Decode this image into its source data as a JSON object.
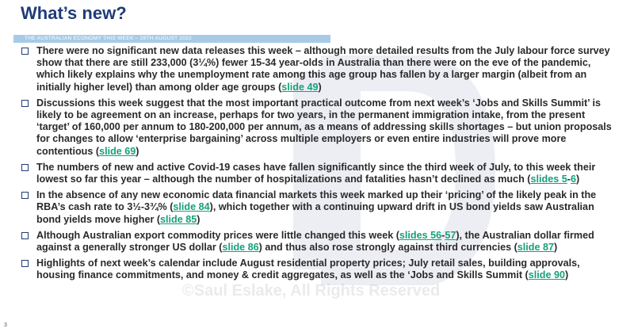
{
  "title": "What’s new?",
  "banner": "THE AUSTRALIAN ECONOMY THIS WEEK – 26TH AUGUST 2022",
  "watermark": "©Saul Eslake, All Rights Reserved",
  "page_number": "3",
  "colors": {
    "title": "#1f3b78",
    "link": "#16a07a",
    "text": "#2a2a2a",
    "banner": "#a7cbe6"
  },
  "bullets": [
    {
      "text1": "There were no significant new data releases this week – although more detailed results from the July labour force survey show that there are still 233,000  (3¼%) fewer 15-34  year-olds in Australia than there were on the eve of the pandemic, which likely explains why the unemployment rate among this age group has fallen by a larger margin (albeit from an initially higher level) than among older age groups (",
      "link1": "slide 49",
      "text2": ")"
    },
    {
      "text1": "Discussions this week suggest that the most important practical outcome from next week’s ‘Jobs and Skills Summit’ is likely to be agreement on an increase, perhaps for two years, in the permanent immigration intake, from the present ‘target’ of 160,000  per annum to 180-200,000  per annum, as a means of addressing skills shortages – but union proposals for changes to allow ‘enterprise bargaining’ across multiple employers or even entire industries will prove more contentious (",
      "link1": "slide 69",
      "text2": ")"
    },
    {
      "text1": "The numbers of new and active Covid-19 cases have fallen significantly since the third week of July, to this week their lowest so far this year – although the number of hospitalizations and fatalities hasn’t declined as much (",
      "link1": "slides 5",
      "text2": "-",
      "link2": "6",
      "text3": ")"
    },
    {
      "text1": "In the absence of any new economic data financial markets this week marked up their ‘pricing’ of the likely peak in the RBA’s cash rate to 3½-3¾% (",
      "link1": "slide 84",
      "text2": "), which together with a continuing upward drift in US bond yields saw Australian bond yields move higher (",
      "link2": "slide 85",
      "text3": ")"
    },
    {
      "text1": "Although Australian export commodity prices were little changed this week (",
      "link1": "slides 56",
      "text2": "-",
      "link2": "57",
      "text3": "),  the Australian dollar firmed against a generally stronger US dollar (",
      "link3": "slide 86",
      "text4": ") and thus also rose strongly against third currencies (",
      "link4": "slide 87",
      "text5": ")"
    },
    {
      "text1": "Highlights of next week’s calendar include August residential property prices; July retail sales, building approvals, housing finance commitments, and money & credit aggregates, as well as the ‘Jobs and Skills Summit (",
      "link1": "slide 90",
      "text2": ")"
    }
  ]
}
